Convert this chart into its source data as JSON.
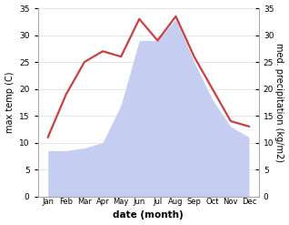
{
  "months": [
    "Jan",
    "Feb",
    "Mar",
    "Apr",
    "May",
    "Jun",
    "Jul",
    "Aug",
    "Sep",
    "Oct",
    "Nov",
    "Dec"
  ],
  "temperature": [
    11,
    19,
    25,
    27,
    26,
    33,
    29,
    33.5,
    26,
    20,
    14,
    13
  ],
  "precipitation": [
    8.5,
    8.5,
    9,
    10,
    17,
    29,
    29,
    33,
    25,
    18,
    13,
    11
  ],
  "temp_color": "#c94040",
  "precip_color": "#c5cef0",
  "background_color": "#ffffff",
  "ylabel_left": "max temp (C)",
  "ylabel_right": "med. precipitation (kg/m2)",
  "xlabel": "date (month)",
  "ylim": [
    0,
    35
  ],
  "yticks": [
    0,
    5,
    10,
    15,
    20,
    25,
    30,
    35
  ],
  "temp_linewidth": 1.6,
  "grid_color": "#dddddd"
}
